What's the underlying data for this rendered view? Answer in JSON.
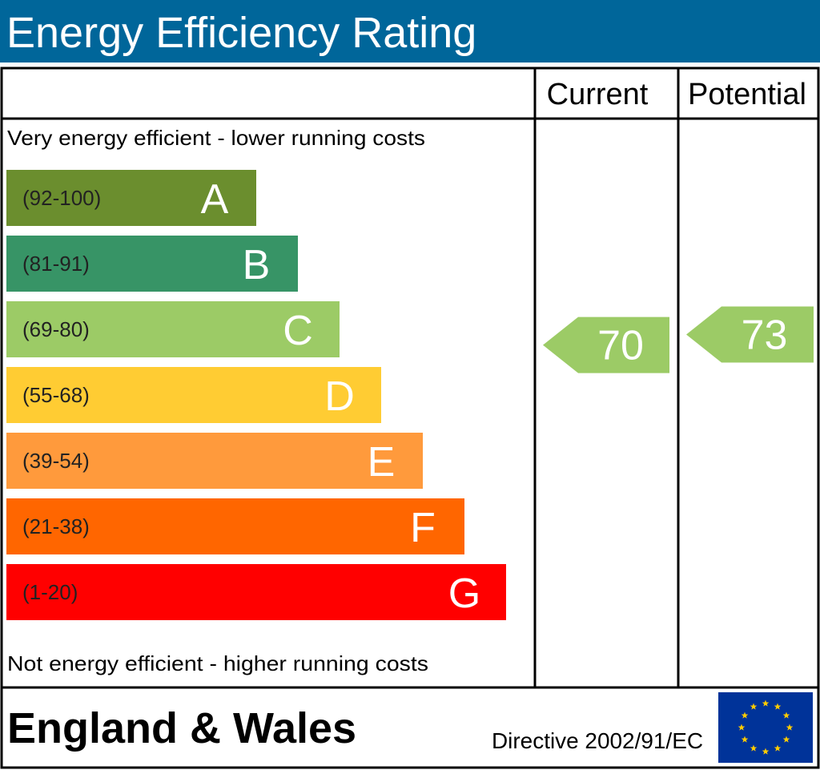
{
  "header": {
    "title": "Energy Efficiency Rating"
  },
  "chart_data": {
    "type": "bar",
    "title": "Energy Efficiency Rating",
    "column_headers": {
      "current": "Current",
      "potential": "Potential"
    },
    "top_note": "Very energy efficient - lower running costs",
    "bottom_note": "Not energy efficient - higher running costs",
    "bands": [
      {
        "letter": "A",
        "range": "(92-100)",
        "color": "#6b8e2e"
      },
      {
        "letter": "B",
        "range": "(81-91)",
        "color": "#379466"
      },
      {
        "letter": "C",
        "range": "(69-80)",
        "color": "#9ccb66"
      },
      {
        "letter": "D",
        "range": "(55-68)",
        "color": "#ffcc33"
      },
      {
        "letter": "E",
        "range": "(39-54)",
        "color": "#ff9a3c"
      },
      {
        "letter": "F",
        "range": "(21-38)",
        "color": "#ff6600"
      },
      {
        "letter": "G",
        "range": "(1-20)",
        "color": "#ff0000"
      }
    ],
    "current": {
      "value": 70,
      "label": "70",
      "band": "C",
      "color": "#9ccb66"
    },
    "potential": {
      "value": 73,
      "label": "73",
      "band": "C",
      "color": "#9ccb66"
    }
  },
  "footer": {
    "region": "England & Wales",
    "directive": "Directive 2002/91/EC",
    "flag_color": "#003399",
    "star_color": "#ffcc00"
  }
}
